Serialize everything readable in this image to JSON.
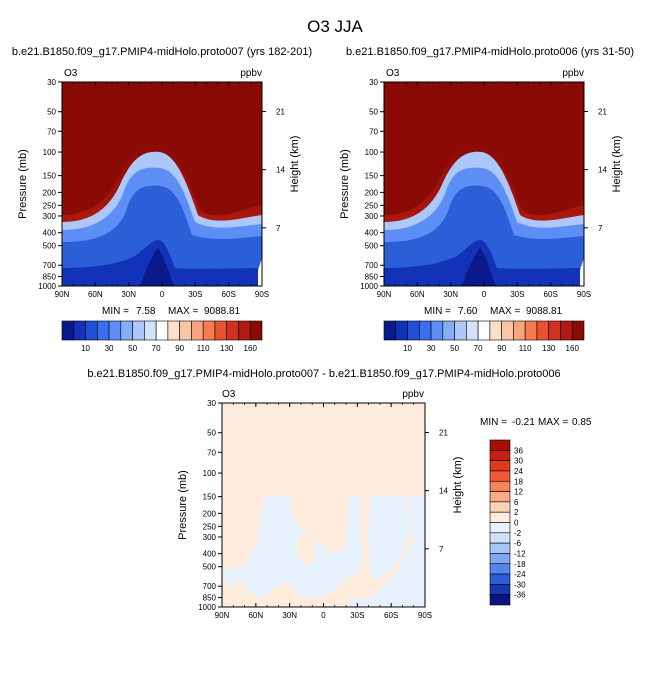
{
  "figure": {
    "title": "O3 JJA"
  },
  "chart_data": [
    {
      "type": "heatmap",
      "title": "b.e21.B1850.f09_g17.PMIP4-midHolo.proto007 (yrs 182-201)",
      "variable_label": "O3",
      "units_label": "ppbv",
      "ylabel": "Pressure (mb)",
      "y2label": "Height (km)",
      "x_ticks": [
        "90N",
        "60N",
        "30N",
        "0",
        "30S",
        "60S",
        "90S"
      ],
      "y_ticks": [
        "30",
        "50",
        "70",
        "100",
        "150",
        "200",
        "250",
        "300",
        "400",
        "500",
        "700",
        "850",
        "1000"
      ],
      "y2_ticks": [
        "21",
        "14",
        "7"
      ],
      "stats": {
        "min_label": "MIN =",
        "min": "7.58",
        "max_label": "MAX =",
        "max": "9088.81"
      },
      "colorbar_labels": [
        "10",
        "30",
        "50",
        "70",
        "90",
        "110",
        "130",
        "160"
      ],
      "colorbar_colors": [
        "#0a1a8c",
        "#1232b8",
        "#1f4fd8",
        "#3c6ef0",
        "#5d8ef5",
        "#86adf7",
        "#adc8f8",
        "#d3e2fb",
        "#ffffff",
        "#fde0cc",
        "#fbc6a5",
        "#f8a57d",
        "#f47b52",
        "#e75330",
        "#d2321d",
        "#b01a10",
        "#8a0a05"
      ]
    },
    {
      "type": "heatmap",
      "title": "b.e21.B1850.f09_g17.PMIP4-midHolo.proto006 (yrs 31-50)",
      "variable_label": "O3",
      "units_label": "ppbv",
      "ylabel": "Pressure (mb)",
      "y2label": "Height (km)",
      "x_ticks": [
        "90N",
        "60N",
        "30N",
        "0",
        "30S",
        "60S",
        "90S"
      ],
      "y_ticks": [
        "30",
        "50",
        "70",
        "100",
        "150",
        "200",
        "250",
        "300",
        "400",
        "500",
        "700",
        "850",
        "1000"
      ],
      "y2_ticks": [
        "21",
        "14",
        "7"
      ],
      "stats": {
        "min_label": "MIN =",
        "min": "7.60",
        "max_label": "MAX =",
        "max": "9088.81"
      },
      "colorbar_labels": [
        "10",
        "30",
        "50",
        "70",
        "90",
        "110",
        "130",
        "160"
      ],
      "colorbar_colors": [
        "#0a1a8c",
        "#1232b8",
        "#1f4fd8",
        "#3c6ef0",
        "#5d8ef5",
        "#86adf7",
        "#adc8f8",
        "#d3e2fb",
        "#ffffff",
        "#fde0cc",
        "#fbc6a5",
        "#f8a57d",
        "#f47b52",
        "#e75330",
        "#d2321d",
        "#b01a10",
        "#8a0a05"
      ]
    },
    {
      "type": "heatmap",
      "title": "b.e21.B1850.f09_g17.PMIP4-midHolo.proto007 - b.e21.B1850.f09_g17.PMIP4-midHolo.proto006",
      "variable_label": "O3",
      "units_label": "ppbv",
      "ylabel": "Pressure (mb)",
      "y2label": "Height (km)",
      "x_ticks": [
        "90N",
        "60N",
        "30N",
        "0",
        "30S",
        "60S",
        "90S"
      ],
      "y_ticks": [
        "30",
        "50",
        "70",
        "100",
        "150",
        "200",
        "250",
        "300",
        "400",
        "500",
        "700",
        "850",
        "1000"
      ],
      "y2_ticks": [
        "21",
        "14",
        "7"
      ],
      "stats": {
        "min_label": "MIN =",
        "min": "-0.21",
        "max_label": "MAX =",
        "max": "0.85"
      },
      "colorbar_labels": [
        "36",
        "30",
        "24",
        "18",
        "12",
        "6",
        "2",
        "0",
        "-2",
        "-6",
        "-12",
        "-18",
        "-24",
        "-30",
        "-36"
      ],
      "colorbar_colors": [
        "#a50f05",
        "#c6200f",
        "#e0391f",
        "#f15a36",
        "#f98457",
        "#fcab84",
        "#fdd3b8",
        "#feebdc",
        "#e7f1fd",
        "#cfe0fb",
        "#a9c6f7",
        "#7ea7f2",
        "#5185ea",
        "#2a5fd8",
        "#1538b0",
        "#0a1680"
      ]
    }
  ]
}
